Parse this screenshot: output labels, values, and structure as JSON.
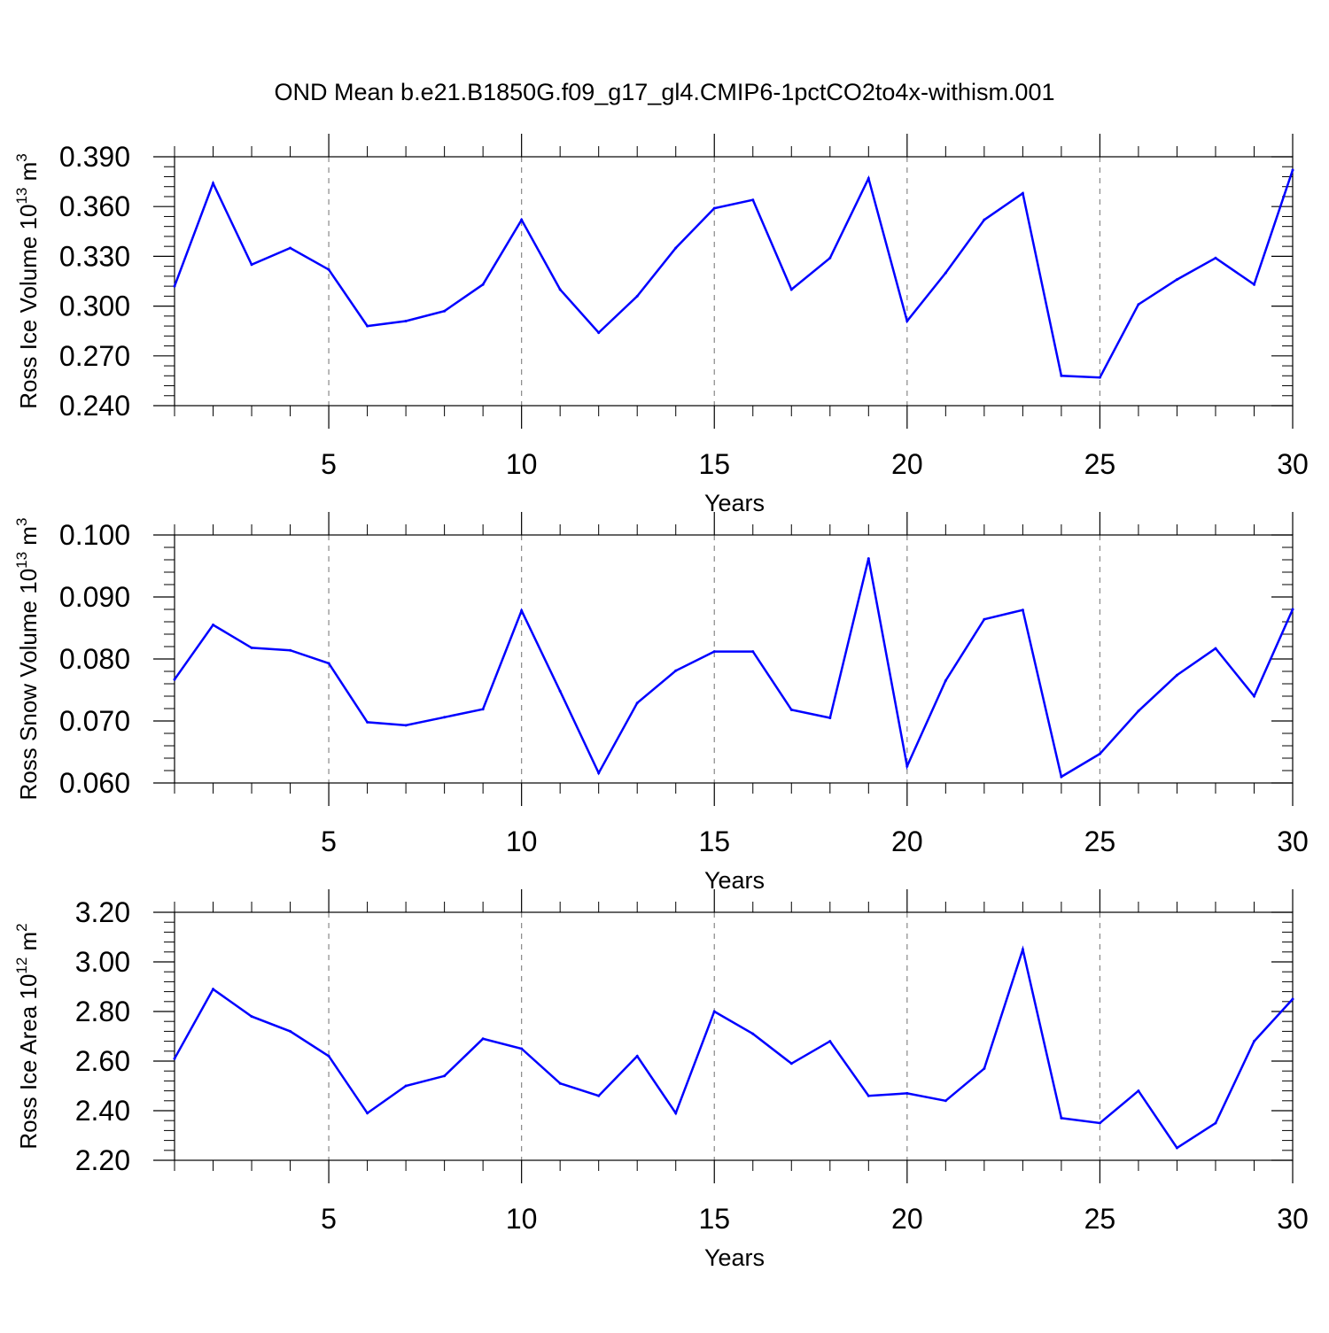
{
  "figure_title": "OND Mean b.e21.B1850G.f09_g17_gl4.CMIP6-1pctCO2to4x-withism.001",
  "colors": {
    "line": "#0000ff",
    "axis": "#000000",
    "grid": "#888888"
  },
  "chart_data": [
    {
      "type": "line",
      "title": "OND Mean b.e21.B1850G.f09_g17_gl4.CMIP6-1pctCO2to4x-withism.001",
      "xlabel": "Years",
      "ylabel": "Ross Ice Volume 10^13 m^3",
      "ylabel_base": "Ross Ice Volume 10",
      "ylabel_exp": "13",
      "ylabel_unit": "m",
      "ylabel_unit_exp": "3",
      "xlim": [
        1,
        30
      ],
      "ylim": [
        0.24,
        0.39
      ],
      "xticks": [
        5,
        10,
        15,
        20,
        25,
        30
      ],
      "xtick_labels": [
        "5",
        "10",
        "15",
        "20",
        "25",
        "30"
      ],
      "yticks": [
        0.24,
        0.27,
        0.3,
        0.33,
        0.36,
        0.39
      ],
      "ytick_labels": [
        "0.240",
        "0.270",
        "0.300",
        "0.330",
        "0.360",
        "0.390"
      ],
      "x": [
        1,
        2,
        3,
        4,
        5,
        6,
        7,
        8,
        9,
        10,
        11,
        12,
        13,
        14,
        15,
        16,
        17,
        18,
        19,
        20,
        21,
        22,
        23,
        24,
        25,
        26,
        27,
        28,
        29,
        30
      ],
      "series": [
        {
          "name": "Ross Ice Volume",
          "values": [
            0.312,
            0.374,
            0.325,
            0.335,
            0.322,
            0.288,
            0.291,
            0.297,
            0.313,
            0.352,
            0.31,
            0.284,
            0.306,
            0.335,
            0.359,
            0.364,
            0.31,
            0.329,
            0.377,
            0.291,
            0.32,
            0.352,
            0.368,
            0.258,
            0.257,
            0.301,
            0.316,
            0.329,
            0.313,
            0.382
          ]
        }
      ],
      "grid": "dashed vertical at x ticks"
    },
    {
      "type": "line",
      "xlabel": "Years",
      "ylabel": "Ross Snow Volume 10^13 m^3",
      "ylabel_base": "Ross Snow Volume 10",
      "ylabel_exp": "13",
      "ylabel_unit": "m",
      "ylabel_unit_exp": "3",
      "xlim": [
        1,
        30
      ],
      "ylim": [
        0.06,
        0.1
      ],
      "xticks": [
        5,
        10,
        15,
        20,
        25,
        30
      ],
      "xtick_labels": [
        "5",
        "10",
        "15",
        "20",
        "25",
        "30"
      ],
      "yticks": [
        0.06,
        0.07,
        0.08,
        0.09,
        0.1
      ],
      "ytick_labels": [
        "0.060",
        "0.070",
        "0.080",
        "0.090",
        "0.100"
      ],
      "x": [
        1,
        2,
        3,
        4,
        5,
        6,
        7,
        8,
        9,
        10,
        11,
        12,
        13,
        14,
        15,
        16,
        17,
        18,
        19,
        20,
        21,
        22,
        23,
        24,
        25,
        26,
        27,
        28,
        29,
        30
      ],
      "series": [
        {
          "name": "Ross Snow Volume",
          "values": [
            0.0767,
            0.0855,
            0.0818,
            0.0814,
            0.0793,
            0.0698,
            0.0693,
            0.0706,
            0.0719,
            0.0878,
            0.0748,
            0.0616,
            0.0729,
            0.0781,
            0.0812,
            0.0812,
            0.0718,
            0.0705,
            0.0962,
            0.0627,
            0.0765,
            0.0864,
            0.0879,
            0.061,
            0.0647,
            0.0716,
            0.0774,
            0.0817,
            0.074,
            0.088
          ]
        }
      ],
      "grid": "dashed vertical at x ticks"
    },
    {
      "type": "line",
      "xlabel": "Years",
      "ylabel": "Ross Ice Area 10^12 m^2",
      "ylabel_base": "Ross Ice Area 10",
      "ylabel_exp": "12",
      "ylabel_unit": "m",
      "ylabel_unit_exp": "2",
      "xlim": [
        1,
        30
      ],
      "ylim": [
        2.2,
        3.2
      ],
      "xticks": [
        5,
        10,
        15,
        20,
        25,
        30
      ],
      "xtick_labels": [
        "5",
        "10",
        "15",
        "20",
        "25",
        "30"
      ],
      "yticks": [
        2.2,
        2.4,
        2.6,
        2.8,
        3.0,
        3.2
      ],
      "ytick_labels": [
        "2.20",
        "2.40",
        "2.60",
        "2.80",
        "3.00",
        "3.20"
      ],
      "x": [
        1,
        2,
        3,
        4,
        5,
        6,
        7,
        8,
        9,
        10,
        11,
        12,
        13,
        14,
        15,
        16,
        17,
        18,
        19,
        20,
        21,
        22,
        23,
        24,
        25,
        26,
        27,
        28,
        29,
        30
      ],
      "series": [
        {
          "name": "Ross Ice Area",
          "values": [
            2.61,
            2.89,
            2.78,
            2.72,
            2.62,
            2.39,
            2.5,
            2.54,
            2.69,
            2.65,
            2.51,
            2.46,
            2.62,
            2.39,
            2.8,
            2.71,
            2.59,
            2.68,
            2.46,
            2.47,
            2.44,
            2.57,
            3.05,
            2.37,
            2.35,
            2.48,
            2.25,
            2.35,
            2.68,
            2.85
          ]
        }
      ],
      "grid": "dashed vertical at x ticks"
    }
  ]
}
